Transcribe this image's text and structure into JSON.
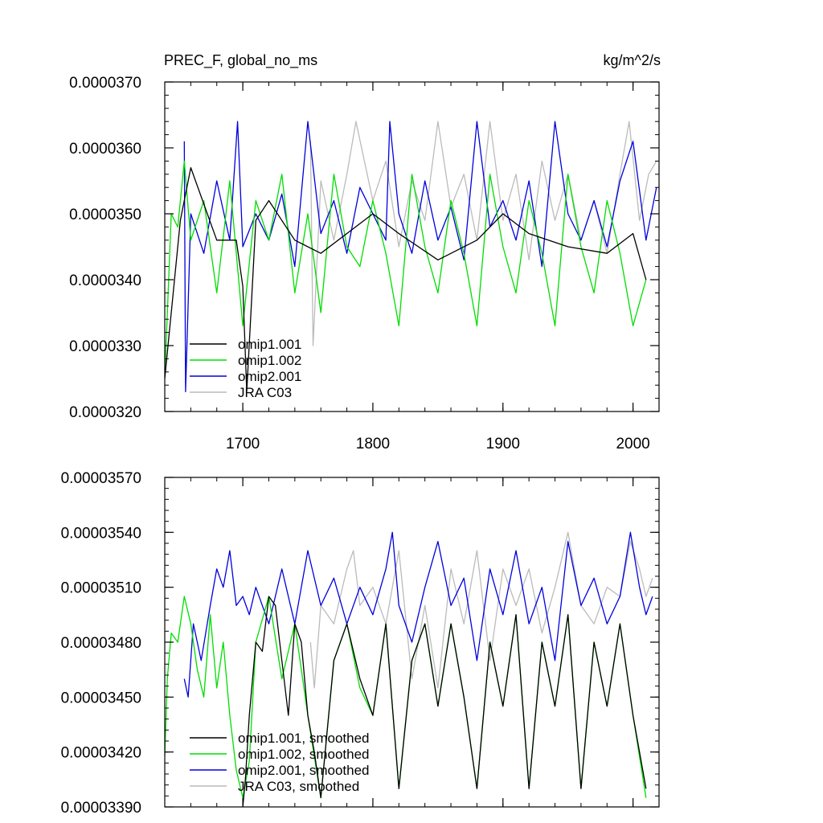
{
  "chart_data": [
    {
      "type": "line",
      "title_left": "PREC_F, global_no_ms",
      "title_right": "kg/m^2/s",
      "xlim": [
        1640,
        2020
      ],
      "ylim": [
        3.2e-05,
        3.7e-05
      ],
      "x_ticks": [
        1700,
        1800,
        1900,
        2000
      ],
      "x_tick_labels": [
        "1700",
        "1800",
        "1900",
        "2000"
      ],
      "y_ticks": [
        3.2e-05,
        3.3e-05,
        3.4e-05,
        3.5e-05,
        3.6e-05,
        3.7e-05
      ],
      "y_tick_labels": [
        "0.0000320",
        "0.0000330",
        "0.0000340",
        "0.0000350",
        "0.0000360",
        "0.0000370"
      ],
      "grid": false,
      "legend_position": "bottom-left",
      "series": [
        {
          "name": "omip1.001",
          "color": "#000000",
          "x": [
            1640,
            1652,
            1660,
            1680,
            1695,
            1700,
            1703,
            1710,
            1720,
            1740,
            1760,
            1800,
            1820,
            1850,
            1880,
            1900,
            1920,
            1950,
            1980,
            2000,
            2010
          ],
          "values": [
            3.25e-05,
            3.49e-05,
            3.57e-05,
            3.46e-05,
            3.46e-05,
            3.39e-05,
            3.23e-05,
            3.49e-05,
            3.52e-05,
            3.46e-05,
            3.44e-05,
            3.5e-05,
            3.47e-05,
            3.43e-05,
            3.46e-05,
            3.5e-05,
            3.47e-05,
            3.45e-05,
            3.44e-05,
            3.47e-05,
            3.4e-05
          ]
        },
        {
          "name": "omip1.002",
          "color": "#00dd00",
          "x": [
            1640,
            1645,
            1650,
            1655,
            1660,
            1670,
            1680,
            1690,
            1700,
            1710,
            1720,
            1730,
            1740,
            1750,
            1760,
            1770,
            1780,
            1790,
            1800,
            1810,
            1820,
            1830,
            1840,
            1850,
            1860,
            1870,
            1880,
            1890,
            1900,
            1910,
            1920,
            1930,
            1940,
            1950,
            1960,
            1970,
            1980,
            1990,
            2000,
            2010
          ],
          "values": [
            3.25e-05,
            3.5e-05,
            3.48e-05,
            3.58e-05,
            3.46e-05,
            3.52e-05,
            3.38e-05,
            3.55e-05,
            3.33e-05,
            3.52e-05,
            3.46e-05,
            3.56e-05,
            3.38e-05,
            3.5e-05,
            3.35e-05,
            3.56e-05,
            3.45e-05,
            3.42e-05,
            3.52e-05,
            3.44e-05,
            3.33e-05,
            3.56e-05,
            3.45e-05,
            3.38e-05,
            3.52e-05,
            3.44e-05,
            3.33e-05,
            3.56e-05,
            3.45e-05,
            3.38e-05,
            3.52e-05,
            3.44e-05,
            3.33e-05,
            3.56e-05,
            3.45e-05,
            3.38e-05,
            3.52e-05,
            3.44e-05,
            3.33e-05,
            3.4e-05
          ]
        },
        {
          "name": "omip2.001",
          "color": "#0000dd",
          "x": [
            1655,
            1656,
            1660,
            1670,
            1680,
            1690,
            1696,
            1700,
            1710,
            1720,
            1730,
            1740,
            1750,
            1760,
            1770,
            1780,
            1790,
            1800,
            1810,
            1813,
            1820,
            1830,
            1840,
            1850,
            1860,
            1870,
            1880,
            1890,
            1900,
            1910,
            1920,
            1930,
            1940,
            1950,
            1960,
            1970,
            1980,
            1990,
            2000,
            2010,
            2018
          ],
          "values": [
            3.61e-05,
            3.23e-05,
            3.5e-05,
            3.44e-05,
            3.55e-05,
            3.46e-05,
            3.64e-05,
            3.45e-05,
            3.5e-05,
            3.46e-05,
            3.53e-05,
            3.42e-05,
            3.64e-05,
            3.47e-05,
            3.52e-05,
            3.44e-05,
            3.54e-05,
            3.5e-05,
            3.46e-05,
            3.64e-05,
            3.5e-05,
            3.44e-05,
            3.55e-05,
            3.46e-05,
            3.51e-05,
            3.43e-05,
            3.64e-05,
            3.48e-05,
            3.52e-05,
            3.46e-05,
            3.55e-05,
            3.42e-05,
            3.64e-05,
            3.5e-05,
            3.46e-05,
            3.52e-05,
            3.45e-05,
            3.55e-05,
            3.61e-05,
            3.46e-05,
            3.54e-05
          ]
        },
        {
          "name": "JRA C03",
          "color": "#bbbbbb",
          "x": [
            1752,
            1754,
            1760,
            1770,
            1780,
            1787,
            1800,
            1810,
            1820,
            1830,
            1840,
            1850,
            1860,
            1870,
            1880,
            1890,
            1900,
            1910,
            1920,
            1930,
            1940,
            1950,
            1960,
            1970,
            1980,
            1990,
            1997,
            2005,
            2012,
            2018
          ],
          "values": [
            3.61e-05,
            3.3e-05,
            3.55e-05,
            3.46e-05,
            3.56e-05,
            3.64e-05,
            3.52e-05,
            3.58e-05,
            3.45e-05,
            3.55e-05,
            3.49e-05,
            3.64e-05,
            3.51e-05,
            3.56e-05,
            3.46e-05,
            3.64e-05,
            3.49e-05,
            3.56e-05,
            3.43e-05,
            3.58e-05,
            3.49e-05,
            3.56e-05,
            3.46e-05,
            3.52e-05,
            3.44e-05,
            3.56e-05,
            3.64e-05,
            3.49e-05,
            3.56e-05,
            3.58e-05
          ]
        }
      ]
    },
    {
      "type": "line",
      "xlim": [
        1640,
        2020
      ],
      "ylim": [
        3.39e-05,
        3.57e-05
      ],
      "x_ticks": [
        1700,
        1800,
        1900,
        2000
      ],
      "x_tick_labels": [],
      "y_ticks": [
        3.39e-05,
        3.42e-05,
        3.45e-05,
        3.48e-05,
        3.51e-05,
        3.54e-05,
        3.57e-05
      ],
      "y_tick_labels": [
        "0.00003390",
        "0.00003420",
        "0.00003450",
        "0.00003480",
        "0.00003510",
        "0.00003540",
        "0.00003570"
      ],
      "grid": false,
      "legend_position": "bottom-left",
      "series": [
        {
          "name": "omip1.001, smoothed",
          "color": "#000000",
          "x": [
            1700,
            1702,
            1705,
            1710,
            1715,
            1720,
            1725,
            1730,
            1735,
            1740,
            1745,
            1750,
            1755,
            1760,
            1770,
            1780,
            1790,
            1800,
            1810,
            1820,
            1830,
            1840,
            1850,
            1860,
            1870,
            1880,
            1890,
            1900,
            1910,
            1920,
            1930,
            1940,
            1950,
            1960,
            1970,
            1980,
            1990,
            2000,
            2010
          ],
          "values": [
            3.39e-05,
            3.405e-05,
            3.44e-05,
            3.48e-05,
            3.475e-05,
            3.505e-05,
            3.5e-05,
            3.47e-05,
            3.44e-05,
            3.49e-05,
            3.48e-05,
            3.44e-05,
            3.42e-05,
            3.395e-05,
            3.47e-05,
            3.49e-05,
            3.46e-05,
            3.44e-05,
            3.49e-05,
            3.4e-05,
            3.47e-05,
            3.49e-05,
            3.445e-05,
            3.49e-05,
            3.45e-05,
            3.4e-05,
            3.48e-05,
            3.445e-05,
            3.495e-05,
            3.4e-05,
            3.48e-05,
            3.445e-05,
            3.495e-05,
            3.4e-05,
            3.48e-05,
            3.445e-05,
            3.49e-05,
            3.44e-05,
            3.4e-05
          ]
        },
        {
          "name": "omip1.002, smoothed",
          "color": "#00dd00",
          "x": [
            1640,
            1642,
            1645,
            1650,
            1655,
            1660,
            1665,
            1670,
            1675,
            1680,
            1685,
            1690,
            1695,
            1700,
            1705,
            1710,
            1720,
            1730,
            1740,
            1750,
            1760,
            1770,
            1780,
            1790,
            1800,
            1810,
            1820,
            1830,
            1840,
            1850,
            1860,
            1870,
            1880,
            1890,
            1900,
            1910,
            1920,
            1930,
            1940,
            1950,
            1960,
            1970,
            1980,
            1990,
            2000,
            2010
          ],
          "values": [
            3.418e-05,
            3.46e-05,
            3.485e-05,
            3.48e-05,
            3.505e-05,
            3.49e-05,
            3.465e-05,
            3.45e-05,
            3.495e-05,
            3.455e-05,
            3.48e-05,
            3.44e-05,
            3.41e-05,
            3.395e-05,
            3.415e-05,
            3.48e-05,
            3.505e-05,
            3.46e-05,
            3.49e-05,
            3.44e-05,
            3.395e-05,
            3.47e-05,
            3.49e-05,
            3.455e-05,
            3.44e-05,
            3.49e-05,
            3.4e-05,
            3.47e-05,
            3.49e-05,
            3.445e-05,
            3.49e-05,
            3.45e-05,
            3.4e-05,
            3.48e-05,
            3.445e-05,
            3.495e-05,
            3.4e-05,
            3.48e-05,
            3.445e-05,
            3.495e-05,
            3.4e-05,
            3.48e-05,
            3.445e-05,
            3.49e-05,
            3.44e-05,
            3.395e-05
          ]
        },
        {
          "name": "omip2.001, smoothed",
          "color": "#0000dd",
          "x": [
            1655,
            1658,
            1662,
            1668,
            1675,
            1680,
            1685,
            1690,
            1695,
            1700,
            1705,
            1710,
            1720,
            1730,
            1740,
            1750,
            1760,
            1770,
            1780,
            1790,
            1800,
            1810,
            1815,
            1820,
            1830,
            1840,
            1850,
            1860,
            1870,
            1880,
            1890,
            1900,
            1910,
            1920,
            1930,
            1940,
            1950,
            1960,
            1970,
            1980,
            1990,
            1998,
            2005,
            2010,
            2015
          ],
          "values": [
            3.46e-05,
            3.45e-05,
            3.49e-05,
            3.47e-05,
            3.5e-05,
            3.52e-05,
            3.51e-05,
            3.53e-05,
            3.5e-05,
            3.505e-05,
            3.495e-05,
            3.51e-05,
            3.49e-05,
            3.52e-05,
            3.49e-05,
            3.53e-05,
            3.5e-05,
            3.515e-05,
            3.49e-05,
            3.51e-05,
            3.495e-05,
            3.52e-05,
            3.54e-05,
            3.5e-05,
            3.48e-05,
            3.51e-05,
            3.535e-05,
            3.5e-05,
            3.515e-05,
            3.47e-05,
            3.52e-05,
            3.495e-05,
            3.53e-05,
            3.49e-05,
            3.51e-05,
            3.47e-05,
            3.535e-05,
            3.5e-05,
            3.515e-05,
            3.49e-05,
            3.505e-05,
            3.54e-05,
            3.51e-05,
            3.495e-05,
            3.505e-05
          ]
        },
        {
          "name": "JRA C03, smoothed",
          "color": "#bbbbbb",
          "x": [
            1752,
            1755,
            1760,
            1770,
            1780,
            1785,
            1790,
            1800,
            1810,
            1820,
            1830,
            1840,
            1850,
            1860,
            1870,
            1880,
            1890,
            1900,
            1910,
            1920,
            1930,
            1940,
            1950,
            1960,
            1970,
            1980,
            1990,
            1998,
            2005,
            2010,
            2015
          ],
          "values": [
            3.48e-05,
            3.455e-05,
            3.5e-05,
            3.49e-05,
            3.52e-05,
            3.53e-05,
            3.5e-05,
            3.51e-05,
            3.49e-05,
            3.53e-05,
            3.46e-05,
            3.5e-05,
            3.455e-05,
            3.52e-05,
            3.49e-05,
            3.53e-05,
            3.47e-05,
            3.52e-05,
            3.5e-05,
            3.52e-05,
            3.485e-05,
            3.51e-05,
            3.54e-05,
            3.5e-05,
            3.49e-05,
            3.51e-05,
            3.505e-05,
            3.535e-05,
            3.52e-05,
            3.505e-05,
            3.515e-05
          ]
        }
      ]
    }
  ]
}
